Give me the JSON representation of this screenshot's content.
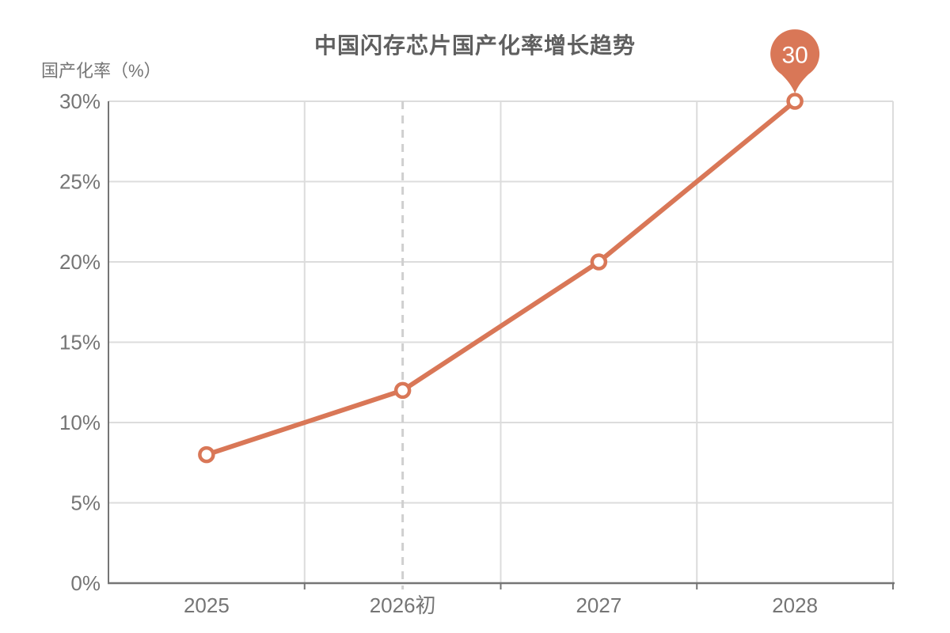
{
  "chart_data": {
    "type": "line",
    "title": "中国闪存芯片国产化率增长趋势",
    "ylabel": "国产化率（%）",
    "xlabel": "",
    "categories": [
      "2025",
      "2026初",
      "2027",
      "2028"
    ],
    "series": [
      {
        "name": "国产化率",
        "values": [
          8,
          12,
          20,
          30
        ]
      }
    ],
    "ylim": [
      0,
      30
    ],
    "y_tick_step": 5,
    "y_tick_labels": [
      "0%",
      "5%",
      "10%",
      "15%",
      "20%",
      "25%",
      "30%"
    ],
    "grid": true,
    "legend": "none",
    "guide_line": {
      "category": "2026初",
      "style": "dashed"
    },
    "annotation": {
      "type": "pin",
      "category": "2028",
      "text": "30"
    },
    "colors": {
      "line": "#D97757",
      "marker_fill": "#FFFFFF",
      "grid": "#DCDCDC",
      "axis": "#757575",
      "tick_text": "#757575",
      "title_text": "#5F5F5F",
      "dashed_guide": "#CFCFCF",
      "pin_text": "#FFFFFF"
    }
  }
}
